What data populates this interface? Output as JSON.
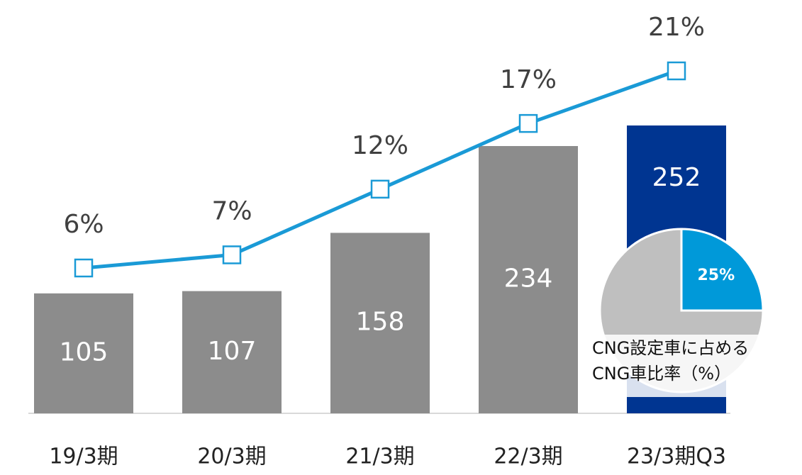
{
  "chart_data": {
    "type": "bar_line",
    "categories": [
      "19/3期",
      "20/3期",
      "21/3期",
      "22/3期",
      "23/3期Q3"
    ],
    "series": [
      {
        "type": "bar",
        "colors": [
          "#8c8c8c",
          "#8c8c8c",
          "#8c8c8c",
          "#8c8c8c",
          "#003591"
        ],
        "values": [
          105,
          107,
          158,
          234,
          252
        ]
      },
      {
        "type": "line",
        "axis": "y2",
        "color": "#1a9ad6",
        "values": [
          6,
          7,
          12,
          17,
          21
        ],
        "value_labels": [
          "6%",
          "7%",
          "12%",
          "17%",
          "21%"
        ]
      }
    ],
    "inset": {
      "type": "pie",
      "values": [
        25,
        75
      ],
      "value_labels": [
        "25%",
        null
      ],
      "colors": [
        "#0099d9",
        "#bfbfbf"
      ],
      "label": [
        "CNG設定車に占める",
        "CNG車比率（%）"
      ]
    }
  }
}
